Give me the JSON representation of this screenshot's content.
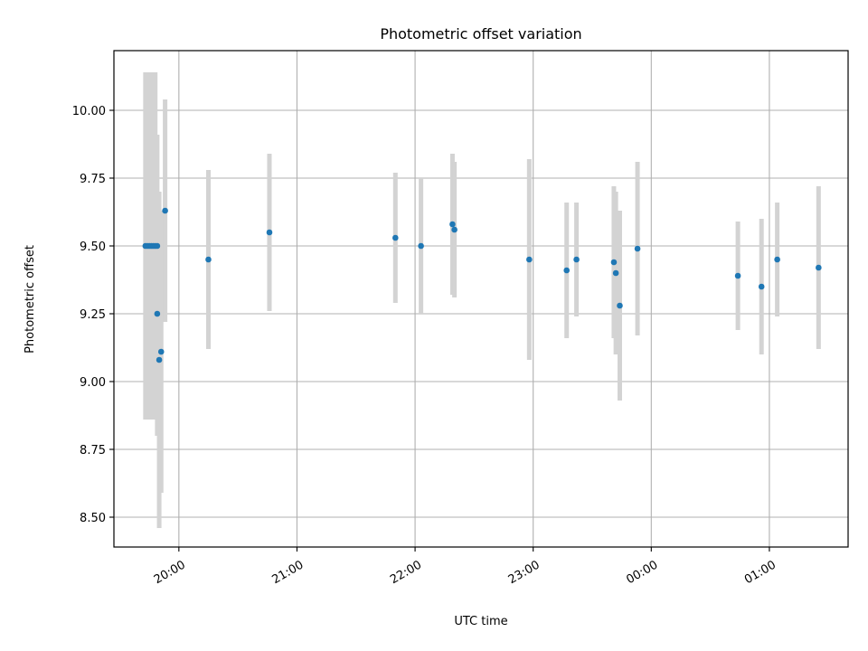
{
  "chart_data": {
    "type": "scatter",
    "title": "Photometric offset variation",
    "xlabel": "UTC time",
    "ylabel": "Photometric offset",
    "x_ticks": [
      "20:00",
      "21:00",
      "22:00",
      "23:00",
      "00:00",
      "01:00"
    ],
    "y_ticks": [
      "8.50",
      "8.75",
      "9.00",
      "9.25",
      "9.50",
      "9.75",
      "10.00"
    ],
    "x_tick_hours": [
      20,
      21,
      22,
      23,
      24,
      25
    ],
    "y_tick_values": [
      8.5,
      8.75,
      9.0,
      9.25,
      9.5,
      9.75,
      10.0
    ],
    "xlim": [
      "19:27",
      "01:40"
    ],
    "ylim": [
      8.39,
      10.22
    ],
    "grid": true,
    "marker_color": "#1f77b4",
    "errorbar_color": "#d3d3d3",
    "series": [
      {
        "points": [
          {
            "x": "19:43",
            "y": 9.5,
            "err": 0.64
          },
          {
            "x": "19:44",
            "y": 9.5,
            "err": 0.64
          },
          {
            "x": "19:45",
            "y": 9.5,
            "err": 0.64
          },
          {
            "x": "19:46",
            "y": 9.5,
            "err": 0.64
          },
          {
            "x": "19:47",
            "y": 9.5,
            "err": 0.64
          },
          {
            "x": "19:48",
            "y": 9.5,
            "err": 0.64
          },
          {
            "x": "19:49",
            "y": 9.5,
            "err": 0.41
          },
          {
            "x": "19:49",
            "y": 9.25,
            "err": 0.45
          },
          {
            "x": "19:50",
            "y": 9.08,
            "err": 0.62
          },
          {
            "x": "19:51",
            "y": 9.11,
            "err": 0.52
          },
          {
            "x": "19:53",
            "y": 9.63,
            "err": 0.41
          },
          {
            "x": "20:15",
            "y": 9.45,
            "err": 0.33
          },
          {
            "x": "20:46",
            "y": 9.55,
            "err": 0.29
          },
          {
            "x": "21:50",
            "y": 9.53,
            "err": 0.24
          },
          {
            "x": "22:03",
            "y": 9.5,
            "err": 0.25
          },
          {
            "x": "22:19",
            "y": 9.58,
            "err": 0.26
          },
          {
            "x": "22:20",
            "y": 9.56,
            "err": 0.25
          },
          {
            "x": "22:58",
            "y": 9.45,
            "err": 0.37
          },
          {
            "x": "23:17",
            "y": 9.41,
            "err": 0.25
          },
          {
            "x": "23:22",
            "y": 9.45,
            "err": 0.21
          },
          {
            "x": "23:41",
            "y": 9.44,
            "err": 0.28
          },
          {
            "x": "23:42",
            "y": 9.4,
            "err": 0.3
          },
          {
            "x": "23:44",
            "y": 9.28,
            "err": 0.35
          },
          {
            "x": "23:53",
            "y": 9.49,
            "err": 0.32
          },
          {
            "x": "00:44",
            "y": 9.39,
            "err": 0.2
          },
          {
            "x": "00:56",
            "y": 9.35,
            "err": 0.25
          },
          {
            "x": "01:04",
            "y": 9.45,
            "err": 0.21
          },
          {
            "x": "01:25",
            "y": 9.42,
            "err": 0.3
          }
        ]
      }
    ]
  }
}
